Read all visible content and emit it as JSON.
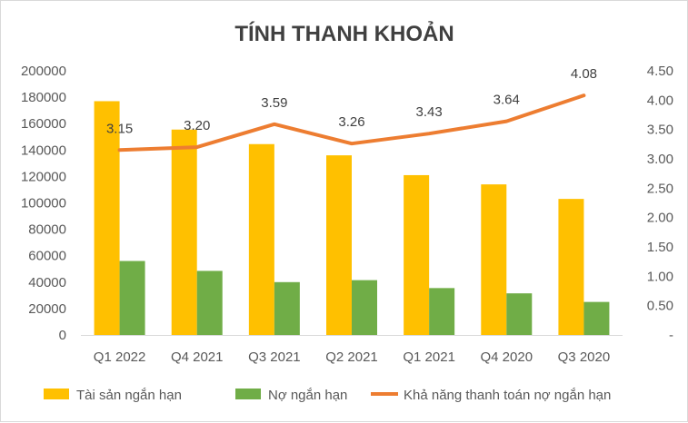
{
  "chart_data": {
    "type": "bar",
    "title": "TÍNH THANH KHOẢN",
    "categories": [
      "Q1 2022",
      "Q4 2021",
      "Q3 2021",
      "Q2 2021",
      "Q1 2021",
      "Q4 2020",
      "Q3 2020"
    ],
    "series": [
      {
        "name": "Tài sản ngắn hạn",
        "type": "bar",
        "axis": "left",
        "color": "#FFC000",
        "values": [
          177000,
          155500,
          144500,
          136000,
          121000,
          114000,
          103000
        ]
      },
      {
        "name": "Nợ ngắn hạn",
        "type": "bar",
        "axis": "left",
        "color": "#70AD47",
        "values": [
          56000,
          48500,
          40000,
          41500,
          35500,
          31500,
          25000
        ]
      },
      {
        "name": "Khả năng thanh toán nợ ngắn hạn",
        "type": "line",
        "axis": "right",
        "color": "#ED7D31",
        "values": [
          3.15,
          3.2,
          3.59,
          3.26,
          3.43,
          3.64,
          4.08
        ],
        "labels": [
          "3.15",
          "3.20",
          "3.59",
          "3.26",
          "3.43",
          "3.64",
          "4.08"
        ]
      }
    ],
    "y_left": {
      "ylim": [
        0,
        200000
      ],
      "ticks": [
        "0",
        "20000",
        "40000",
        "60000",
        "80000",
        "100000",
        "120000",
        "140000",
        "160000",
        "180000",
        "200000"
      ]
    },
    "y_right": {
      "ylim": [
        0,
        4.5
      ],
      "ticks": [
        "-",
        "0.50",
        "1.00",
        "1.50",
        "2.00",
        "2.50",
        "3.00",
        "3.50",
        "4.00",
        "4.50"
      ]
    },
    "grid": false,
    "legend": "bottom"
  }
}
